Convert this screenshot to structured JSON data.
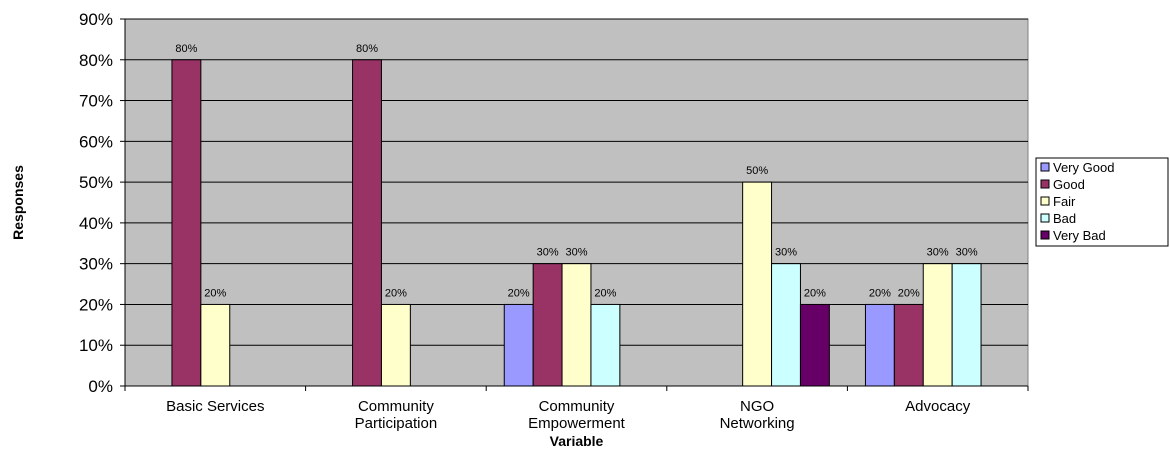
{
  "chart_data": {
    "type": "bar",
    "title": "",
    "xlabel": "Variable",
    "ylabel": "Responses",
    "categories": [
      [
        "Basic Services"
      ],
      [
        "Community",
        "Participation"
      ],
      [
        "Community",
        "Empowerment"
      ],
      [
        "NGO",
        "Networking"
      ],
      [
        "Advocacy"
      ]
    ],
    "series": [
      {
        "name": "Very Good",
        "color": "#9999FF",
        "values": [
          null,
          null,
          20,
          null,
          20
        ]
      },
      {
        "name": "Good",
        "color": "#993366",
        "values": [
          80,
          80,
          30,
          null,
          20
        ]
      },
      {
        "name": "Fair",
        "color": "#FFFFCC",
        "values": [
          20,
          20,
          30,
          50,
          30
        ]
      },
      {
        "name": "Bad",
        "color": "#CCFFFF",
        "values": [
          null,
          null,
          20,
          30,
          30
        ]
      },
      {
        "name": "Very Bad",
        "color": "#660066",
        "values": [
          null,
          null,
          null,
          20,
          null
        ]
      }
    ],
    "ylim": [
      0,
      90
    ],
    "yticks": [
      0,
      10,
      20,
      30,
      40,
      50,
      60,
      70,
      80,
      90
    ],
    "ytick_suffix": "%",
    "grid": true,
    "plot_background": "#C0C0C0",
    "legend_position": "right"
  }
}
